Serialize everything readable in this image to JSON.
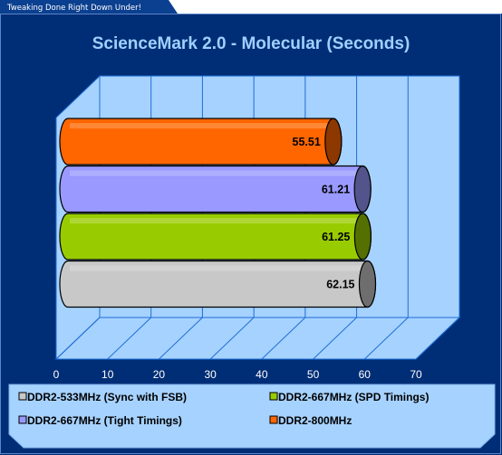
{
  "banner": "Tweaking Done Right Down Under!",
  "colors": {
    "frame": "#002e76",
    "panel": "#a6d2ff",
    "wall_line": "#1e6fd6"
  },
  "chart_data": {
    "type": "bar",
    "orientation": "horizontal",
    "style": "3d-cylinder",
    "title": "ScienceMark 2.0 - Molecular (Seconds)",
    "xlim": [
      0,
      70
    ],
    "ticks": [
      0,
      10,
      20,
      30,
      40,
      50,
      60,
      70
    ],
    "grid": true,
    "legend_position": "bottom",
    "series": [
      {
        "name": "DDR2-533MHz (Sync with FSB)",
        "value": 62.15,
        "label": "62.15",
        "color": "#c8c8c8"
      },
      {
        "name": "DDR2-667MHz (SPD Timings)",
        "value": 61.25,
        "label": "61.25",
        "color": "#99cc00"
      },
      {
        "name": "DDR2-667MHz (Tight Timings)",
        "value": 61.21,
        "label": "61.21",
        "color": "#9999ff"
      },
      {
        "name": "DDR2-800MHz",
        "value": 55.51,
        "label": "55.51",
        "color": "#ff6600"
      }
    ]
  }
}
